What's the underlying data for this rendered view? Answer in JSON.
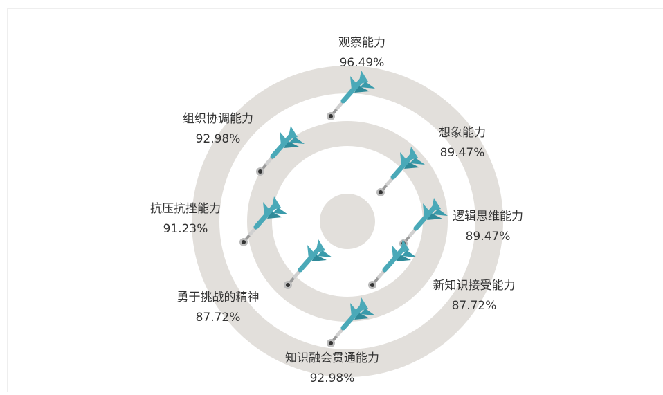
{
  "chart_data": {
    "type": "dartboard",
    "categories": [
      "观察能力",
      "想象能力",
      "逻辑思维能力",
      "新知识接受能力",
      "知识融会贯通能力",
      "勇于挑战的精神",
      "抗压抗挫能力",
      "组织协调能力"
    ],
    "values": [
      96.49,
      89.47,
      89.47,
      87.72,
      92.98,
      87.72,
      91.23,
      92.98
    ],
    "value_labels": [
      "96.49%",
      "89.47%",
      "89.47%",
      "87.72%",
      "92.98%",
      "87.72%",
      "91.23%",
      "92.98%"
    ],
    "color": "#4aa9b8"
  }
}
